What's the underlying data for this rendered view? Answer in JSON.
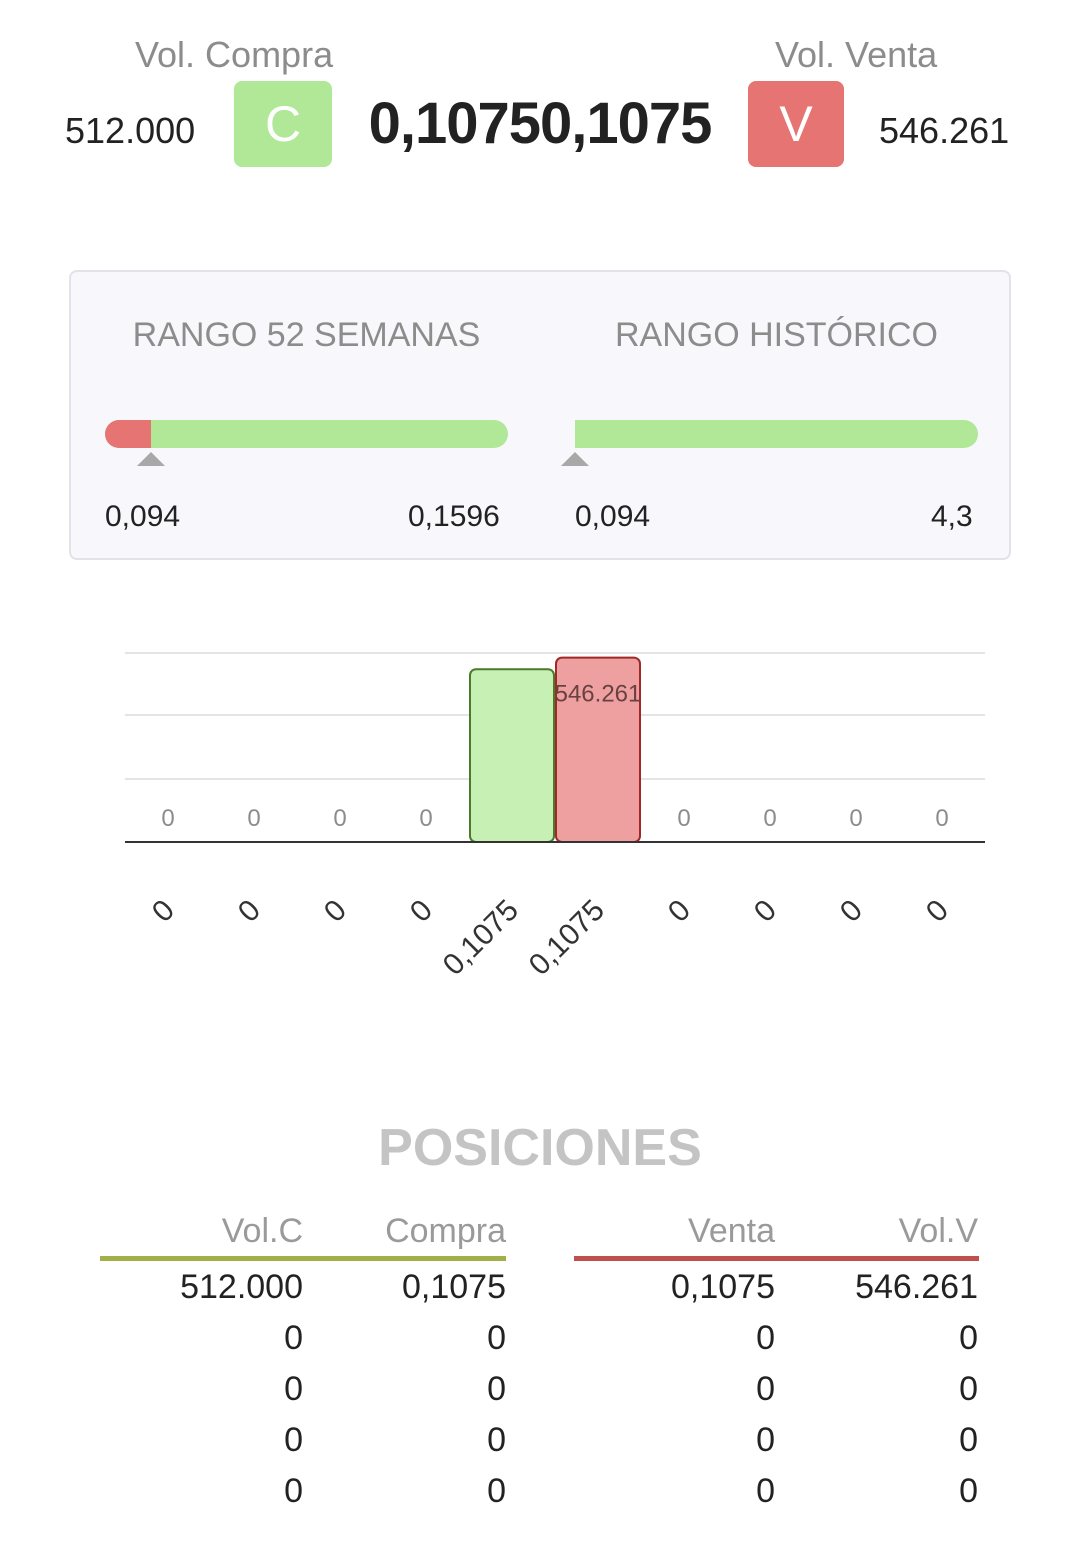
{
  "header": {
    "vol_compra_label": "Vol. Compra",
    "vol_venta_label": "Vol. Venta",
    "vol_compra": "512.000",
    "vol_venta": "546.261",
    "buy_button": "C",
    "sell_button": "V",
    "price": "0,10750,1075",
    "colors": {
      "buy": "#b0e898",
      "sell": "#e57472"
    }
  },
  "ranges": {
    "week52": {
      "title": "RANGO 52 SEMANAS",
      "min": "0,094",
      "max": "0,1596",
      "position": 0.115
    },
    "historic": {
      "title": "RANGO HISTÓRICO",
      "min": "0,094",
      "max": "4,3",
      "position": 0.0
    }
  },
  "chart_data": {
    "type": "bar",
    "categories": [
      "0",
      "0",
      "0",
      "0",
      "0,1075",
      "0,1075",
      "0",
      "0",
      "0",
      "0"
    ],
    "series": [
      {
        "values": [
          0,
          0,
          0,
          0,
          512000,
          546261,
          0,
          0,
          0,
          0
        ]
      }
    ],
    "value_labels": [
      "0",
      "0",
      "0",
      "0",
      "",
      "546.261",
      "0",
      "0",
      "0",
      "0"
    ],
    "bar_colors": [
      "#c6f0b4",
      "#c6f0b4",
      "#c6f0b4",
      "#c6f0b4",
      "#c6f0b4",
      "#eea0a0",
      "#eea0a0",
      "#eea0a0",
      "#eea0a0",
      "#eea0a0"
    ],
    "ylim": [
      0,
      560000
    ],
    "grid": true
  },
  "positions": {
    "title": "POSICIONES",
    "buy_headers": [
      "Vol.C",
      "Compra"
    ],
    "sell_headers": [
      "Venta",
      "Vol.V"
    ],
    "buy_rows": [
      [
        "512.000",
        "0,1075"
      ],
      [
        "0",
        "0"
      ],
      [
        "0",
        "0"
      ],
      [
        "0",
        "0"
      ],
      [
        "0",
        "0"
      ]
    ],
    "sell_rows": [
      [
        "0,1075",
        "546.261"
      ],
      [
        "0",
        "0"
      ],
      [
        "0",
        "0"
      ],
      [
        "0",
        "0"
      ],
      [
        "0",
        "0"
      ]
    ],
    "colors": {
      "buy_rule": "#a3b04a",
      "sell_rule": "#c0504d"
    }
  }
}
